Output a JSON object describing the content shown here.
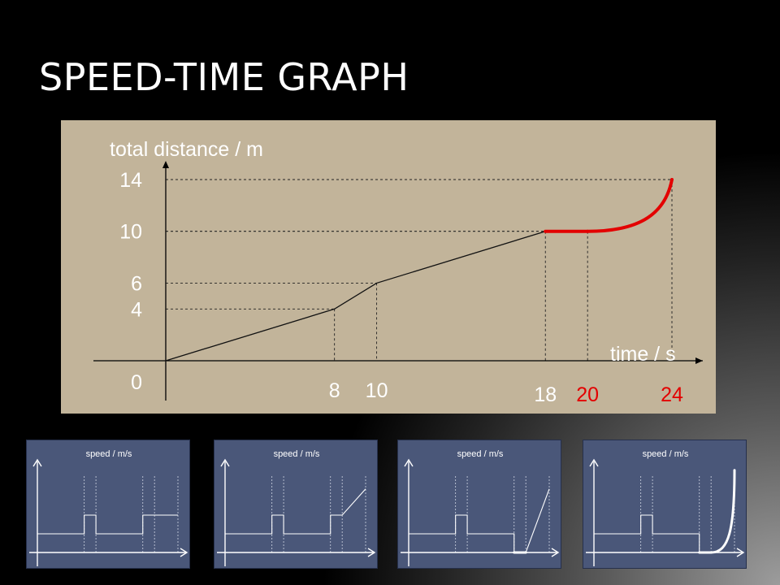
{
  "slide": {
    "title": "SPEED-TIME GRAPH"
  },
  "colors": {
    "panel": "#c2b49a",
    "thumbnail_bg": "#4a5779",
    "highlight": "#e30000",
    "axis": "#000000"
  },
  "chart_data": [
    {
      "type": "line",
      "ylabel": "total distance / m",
      "xlabel": "time / s",
      "xlim": [
        0,
        24
      ],
      "ylim": [
        0,
        14
      ],
      "y_ticks": [
        {
          "value": 0,
          "label": "0"
        },
        {
          "value": 4,
          "label": "4"
        },
        {
          "value": 6,
          "label": "6"
        },
        {
          "value": 10,
          "label": "10"
        },
        {
          "value": 14,
          "label": "14"
        }
      ],
      "x_ticks": [
        {
          "value": 8,
          "label": "8",
          "highlight": false
        },
        {
          "value": 10,
          "label": "10",
          "highlight": false
        },
        {
          "value": 18,
          "label": "18",
          "highlight": false
        },
        {
          "value": 20,
          "label": "20",
          "highlight": true
        },
        {
          "value": 24,
          "label": "24",
          "highlight": true
        }
      ],
      "series": [
        {
          "segment": "0-18",
          "style": "black-thin",
          "points": [
            [
              0,
              0
            ],
            [
              8,
              4
            ],
            [
              10,
              6
            ],
            [
              18,
              10
            ]
          ]
        },
        {
          "segment": "18-20",
          "style": "red-thick",
          "points": [
            [
              18,
              10
            ],
            [
              20,
              10
            ]
          ]
        },
        {
          "segment": "20-24",
          "style": "red-thick-curve",
          "points": [
            [
              20,
              10
            ],
            [
              22,
              10.5
            ],
            [
              23.5,
              12
            ],
            [
              24,
              14
            ]
          ]
        }
      ],
      "dashed_guides": [
        [
          8,
          4
        ],
        [
          10,
          6
        ],
        [
          18,
          10
        ],
        [
          20,
          10
        ],
        [
          24,
          14
        ]
      ]
    },
    {
      "type": "line",
      "ylabel": "speed / m/s",
      "option": 1,
      "segments": [
        {
          "shape": "flat",
          "x0": 0,
          "x1": 8,
          "y": 0.5
        },
        {
          "shape": "flat",
          "x0": 8,
          "x1": 10,
          "y": 1
        },
        {
          "shape": "flat",
          "x0": 10,
          "x1": 18,
          "y": 0.5
        },
        {
          "shape": "flat",
          "x0": 18,
          "x1": 24,
          "y": 1
        }
      ]
    },
    {
      "type": "line",
      "ylabel": "speed / m/s",
      "option": 2,
      "segments": [
        {
          "shape": "flat",
          "x0": 0,
          "x1": 8,
          "y": 0.5
        },
        {
          "shape": "flat",
          "x0": 8,
          "x1": 10,
          "y": 1
        },
        {
          "shape": "flat",
          "x0": 10,
          "x1": 18,
          "y": 0.5
        },
        {
          "shape": "flat",
          "x0": 18,
          "x1": 20,
          "y": 1
        },
        {
          "shape": "rise",
          "x0": 20,
          "x1": 24,
          "y0": 1,
          "y1": 1.7
        }
      ]
    },
    {
      "type": "line",
      "ylabel": "speed / m/s",
      "option": 3,
      "segments": [
        {
          "shape": "flat",
          "x0": 0,
          "x1": 8,
          "y": 0.5
        },
        {
          "shape": "flat",
          "x0": 8,
          "x1": 10,
          "y": 1
        },
        {
          "shape": "flat",
          "x0": 10,
          "x1": 18,
          "y": 0.5
        },
        {
          "shape": "flat",
          "x0": 18,
          "x1": 20,
          "y": 0,
          "emphasis": true
        },
        {
          "shape": "rise",
          "x0": 20,
          "x1": 24,
          "y0": 0,
          "y1": 1.7
        }
      ]
    },
    {
      "type": "line",
      "ylabel": "speed / m/s",
      "option": 4,
      "segments": [
        {
          "shape": "flat",
          "x0": 0,
          "x1": 8,
          "y": 0.5
        },
        {
          "shape": "flat",
          "x0": 8,
          "x1": 10,
          "y": 1
        },
        {
          "shape": "flat",
          "x0": 10,
          "x1": 18,
          "y": 0.5
        },
        {
          "shape": "flat",
          "x0": 18,
          "x1": 20,
          "y": 0,
          "emphasis": true
        },
        {
          "shape": "curve",
          "x0": 20,
          "x1": 24,
          "y0": 0,
          "y1": 2.2,
          "emphasis": true
        }
      ]
    }
  ]
}
